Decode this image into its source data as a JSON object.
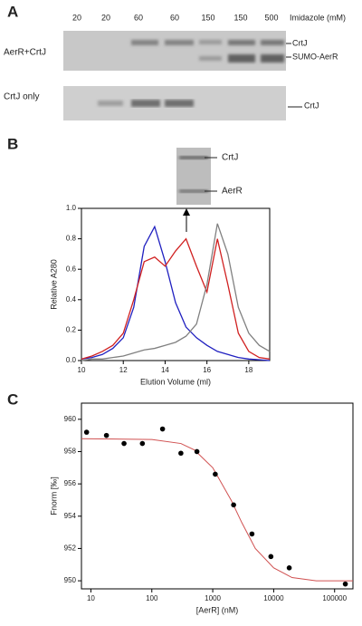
{
  "panels": [
    "A",
    "B",
    "C"
  ],
  "gel": {
    "lanes": [
      "20",
      "20",
      "60",
      "60",
      "150",
      "150",
      "500"
    ],
    "lane_title": "Imidazole (mM)",
    "rows": [
      {
        "label": "AerR+CrtJ",
        "bands": [
          "CrtJ",
          "SUMO-AerR"
        ]
      },
      {
        "label": "CrtJ only",
        "bands": [
          "CrtJ"
        ]
      }
    ]
  },
  "inset": {
    "bands": [
      "CrtJ",
      "AerR"
    ]
  },
  "chart_data": [
    {
      "type": "line",
      "x_label": "Elution Volume (ml)",
      "y_label": "Relative A280",
      "x": [
        10,
        10.5,
        11,
        11.5,
        12,
        12.5,
        13,
        13.5,
        14,
        14.5,
        15,
        15.5,
        16,
        16.5,
        17,
        17.5,
        18,
        18.5,
        19
      ],
      "series": [
        {
          "color": "#2020c0",
          "values": [
            0.01,
            0.02,
            0.04,
            0.08,
            0.15,
            0.35,
            0.75,
            0.88,
            0.65,
            0.38,
            0.22,
            0.15,
            0.1,
            0.06,
            0.04,
            0.02,
            0.01,
            0.005,
            0
          ]
        },
        {
          "color": "#d02020",
          "values": [
            0.01,
            0.03,
            0.06,
            0.1,
            0.18,
            0.4,
            0.65,
            0.68,
            0.62,
            0.72,
            0.8,
            0.62,
            0.45,
            0.8,
            0.5,
            0.18,
            0.06,
            0.02,
            0.01
          ]
        },
        {
          "color": "#808080",
          "values": [
            0,
            0.01,
            0.01,
            0.02,
            0.03,
            0.05,
            0.07,
            0.08,
            0.1,
            0.12,
            0.16,
            0.24,
            0.5,
            0.9,
            0.7,
            0.35,
            0.18,
            0.1,
            0.06
          ]
        }
      ],
      "xlim": [
        10,
        19
      ],
      "xticks": [
        10,
        12,
        14,
        16,
        18
      ],
      "ylim": [
        0,
        1.0
      ],
      "yticks": [
        {
          "value": 0,
          "label": "0.0"
        },
        0.2,
        0.4,
        0.6,
        0.8,
        {
          "value": 1.0,
          "label": "1.0"
        }
      ]
    },
    {
      "type": "scatter",
      "x_label": "[AerR] (nM)",
      "y_label": "Fnorm [‰]",
      "log_x": true,
      "color": "#000000",
      "x": [
        8.5,
        18,
        35,
        70,
        150,
        300,
        550,
        1100,
        2200,
        4400,
        9000,
        18000,
        150000
      ],
      "values": [
        959.2,
        959,
        958.5,
        958.5,
        959.4,
        957.9,
        958,
        956.6,
        954.7,
        952.9,
        951.5,
        950.8,
        949.8
      ],
      "fit": {
        "color": "#d05050",
        "x": [
          7,
          100,
          300,
          500,
          1000,
          2000,
          3000,
          5000,
          10000,
          20000,
          50000,
          200000
        ],
        "values": [
          958.8,
          958.75,
          958.5,
          958.1,
          957.0,
          955.0,
          953.6,
          952.0,
          950.8,
          950.2,
          950.0,
          950.0
        ]
      },
      "xlim": [
        7,
        200000
      ],
      "xticks": [
        10,
        100,
        1000,
        10000,
        100000
      ],
      "ylim": [
        949.5,
        961
      ],
      "yticks": [
        950,
        952,
        954,
        956,
        958,
        960
      ]
    }
  ]
}
